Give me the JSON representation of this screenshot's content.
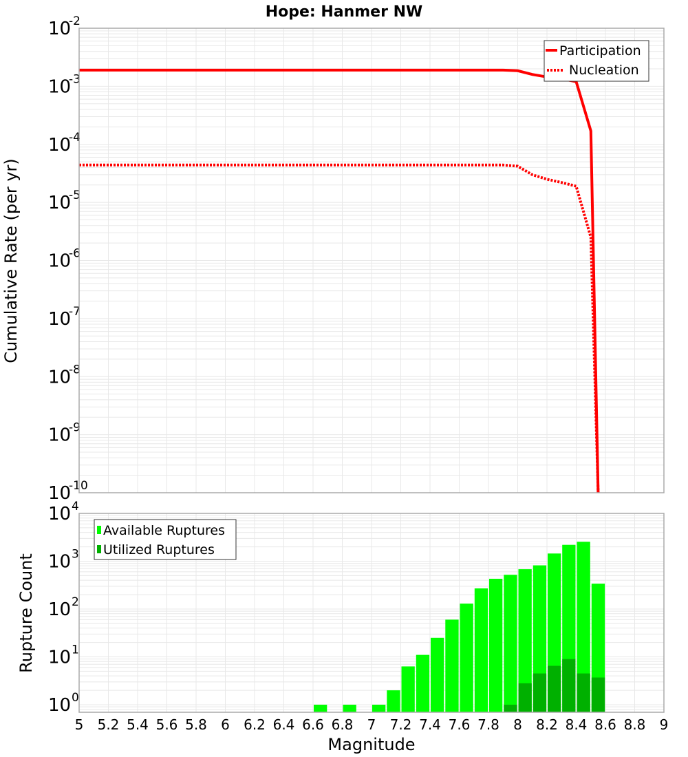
{
  "chart_data": [
    {
      "type": "line",
      "title": "Hope: Hanmer NW",
      "xlabel": "Magnitude",
      "ylabel": "Cumulative Rate (per yr)",
      "yscale": "log",
      "xlim": [
        5,
        9
      ],
      "ylim": [
        1e-10,
        0.01
      ],
      "grid": true,
      "legend_position": "upper right",
      "y_tick_exponents": [
        -2,
        -3,
        -4,
        -5,
        -6,
        -7,
        -8,
        -9,
        -10
      ],
      "series": [
        {
          "name": "Participation",
          "color": "#ff0000",
          "style": "solid",
          "x": [
            5.0,
            7.9,
            8.0,
            8.1,
            8.2,
            8.3,
            8.4,
            8.5,
            8.55
          ],
          "y": [
            0.0019,
            0.0019,
            0.00185,
            0.0016,
            0.00145,
            0.00135,
            0.0012,
            0.00017,
            1e-10
          ]
        },
        {
          "name": "Nucleation",
          "color": "#ff0000",
          "style": "dotted",
          "x": [
            5.0,
            7.9,
            8.0,
            8.1,
            8.2,
            8.3,
            8.4,
            8.5,
            8.55
          ],
          "y": [
            4.4e-05,
            4.4e-05,
            4.2e-05,
            3e-05,
            2.5e-05,
            2.2e-05,
            1.9e-05,
            2.5e-06,
            1e-10
          ]
        }
      ]
    },
    {
      "type": "bar",
      "xlabel": "Magnitude",
      "ylabel": "Rupture Count",
      "yscale": "log",
      "xlim": [
        5,
        9
      ],
      "ylim": [
        0.7,
        10000.0
      ],
      "grid": true,
      "legend_position": "upper left",
      "y_tick_exponents": [
        4,
        3,
        2,
        1,
        0
      ],
      "x_ticks": [
        "5",
        "5.2",
        "5.4",
        "5.6",
        "5.8",
        "6",
        "6.2",
        "6.4",
        "6.6",
        "6.8",
        "7",
        "7.2",
        "7.4",
        "7.6",
        "7.8",
        "8",
        "8.2",
        "8.4",
        "8.6",
        "8.8",
        "9"
      ],
      "bin_width": 0.1,
      "categories": [
        6.65,
        6.85,
        7.05,
        7.15,
        7.25,
        7.35,
        7.45,
        7.55,
        7.65,
        7.75,
        7.85,
        7.95,
        8.05,
        8.15,
        8.25,
        8.35,
        8.45,
        8.55
      ],
      "series": [
        {
          "name": "Available Ruptures",
          "color": "#00ff00",
          "values": [
            1,
            1,
            1,
            2,
            6.3,
            11,
            25,
            60,
            130,
            270,
            430,
            520,
            680,
            820,
            1450,
            2200,
            2550,
            340
          ]
        },
        {
          "name": "Utilized Ruptures",
          "color": "#00b000",
          "values": [
            0,
            0,
            0,
            0,
            0,
            0,
            0,
            0,
            0,
            0,
            0,
            1,
            2.8,
            4.5,
            6.5,
            9,
            4.5,
            3.7
          ]
        }
      ]
    }
  ]
}
